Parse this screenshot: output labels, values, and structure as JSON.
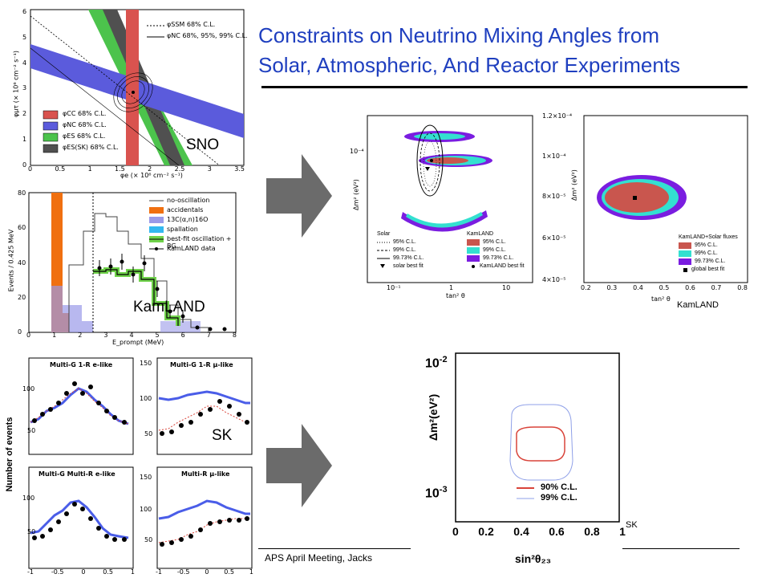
{
  "slide": {
    "title_line1": "Constraints on Neutrino Mixing Angles from",
    "title_line2": "Solar, Atmospheric, And Reactor Experiments",
    "footer": "APS April Meeting, Jacks"
  },
  "sno": {
    "label": "SNO",
    "xlabel": "φe (× 10⁶ cm⁻² s⁻¹)",
    "ylabel": "φμτ (× 10⁶ cm⁻² s⁻¹)",
    "x_ticks": [
      "0",
      "0.5",
      "1",
      "1.5",
      "2",
      "2.5",
      "3",
      "3.5"
    ],
    "y_ticks": [
      "0",
      "1",
      "2",
      "3",
      "4",
      "5",
      "6"
    ],
    "legend_top": [
      "φSSM 68% C.L.",
      "φNC 68%, 95%, 99% C.L."
    ],
    "legend": [
      "φCC 68% C.L.",
      "φNC 68% C.L.",
      "φES 68% C.L.",
      "φES(SK) 68% C.L."
    ],
    "colors": [
      "#d9534f",
      "#5b5bdc",
      "#4cc34c",
      "#505050"
    ]
  },
  "kamland_spectrum": {
    "label": "KamLAND",
    "xlabel": "E_prompt (MeV)",
    "ylabel": "Events / 0.425 MeV",
    "x_ticks": [
      "0",
      "1",
      "2",
      "3",
      "4",
      "5",
      "6",
      "7",
      "8"
    ],
    "y_ticks": [
      "0",
      "20",
      "40",
      "60",
      "80"
    ],
    "legend": [
      "no-oscillation",
      "accidentals",
      "13C(α,n)16O",
      "spallation",
      "best-fit oscillation + BG",
      "KamLAND data"
    ]
  },
  "sk_panels": {
    "label": "SK",
    "ylabel": "Number of events",
    "titles": [
      "Multi-G 1-R e-like",
      "Multi-G 1-R μ-like",
      "Multi-G Multi-R e-like",
      "Multi-R μ-like"
    ],
    "x_ticks": [
      "-1",
      "-0.5",
      "0",
      "0.5",
      "1"
    ],
    "y_ticks_top_left": [
      "50",
      "100"
    ],
    "y_ticks_top_right": [
      "50",
      "100",
      "150"
    ],
    "y_ticks_bottom_left": [
      "50",
      "100"
    ],
    "y_ticks_bottom_right": [
      "50",
      "100",
      "150"
    ]
  },
  "solar_contour": {
    "xlabel": "tan² θ",
    "ylabel": "Δm² (eV²)",
    "x_ticks": [
      "10⁻¹",
      "1",
      "10"
    ],
    "y_ticks": [
      "10⁻⁴"
    ],
    "legend_left_title": "Solar",
    "legend_left": [
      "95% C.L.",
      "99% C.L.",
      "99.73% C.L.",
      "solar best fit"
    ],
    "legend_right_title": "KamLAND",
    "legend_right": [
      "95% C.L.",
      "99% C.L.",
      "99.73% C.L.",
      "KamLAND best fit"
    ]
  },
  "kamland_solar": {
    "label": "KamLAND",
    "xlabel": "tan² θ",
    "ylabel": "Δm² (eV²)",
    "x_ticks": [
      "0.2",
      "0.3",
      "0.4",
      "0.5",
      "0.6",
      "0.7",
      "0.8"
    ],
    "y_ticks": [
      "4×10⁻⁵",
      "6×10⁻⁵",
      "8×10⁻⁵",
      "1×10⁻⁴",
      "1.2×10⁻⁴"
    ],
    "legend_title": "KamLAND+Solar fluxes",
    "legend": [
      "95% C.L.",
      "99% C.L.",
      "99.73% C.L.",
      "global best fit"
    ]
  },
  "sk_contour": {
    "label": "SK",
    "xlabel": "sin²θ₂₃",
    "ylabel": "Δm²(eV²)",
    "x_ticks": [
      "0",
      "0.2",
      "0.4",
      "0.6",
      "0.8",
      "1"
    ],
    "y_tick_top": "10",
    "y_tick_top_exp": "-2",
    "y_tick_bot": "10",
    "y_tick_bot_exp": "-3",
    "legend": [
      "90% C.L.",
      "99% C.L."
    ],
    "colors": [
      "#d9443a",
      "#8fa0e8"
    ]
  },
  "colors": {
    "title": "#1f3fbf",
    "arrow": "#6b6b6b",
    "kam_red": "#c9564e",
    "kam_cyan": "#33e0d0",
    "kam_purple": "#7a1de0"
  }
}
